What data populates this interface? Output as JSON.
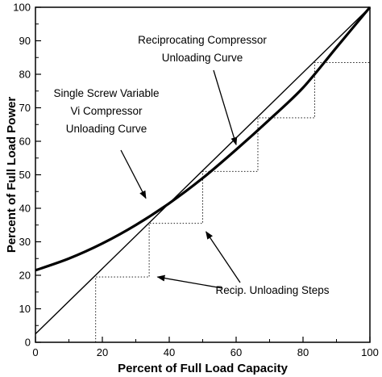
{
  "chart_data": {
    "type": "line",
    "xlabel": "Percent of Full Load Capacity",
    "ylabel": "Percent of Full Load Power",
    "xlim": [
      0,
      100
    ],
    "ylim": [
      0,
      100
    ],
    "xticks": [
      0,
      20,
      40,
      60,
      80,
      100
    ],
    "yticks": [
      0,
      10,
      20,
      30,
      40,
      50,
      60,
      70,
      80,
      90,
      100
    ],
    "grid": false,
    "legend": "none",
    "series": [
      {
        "key": "screw",
        "style": "thick",
        "x": [
          0,
          10,
          20,
          30,
          40,
          50,
          60,
          70,
          80,
          90,
          100
        ],
        "y": [
          21.5,
          25,
          29.5,
          35,
          41.5,
          49,
          57.5,
          66.5,
          76,
          88,
          100
        ]
      },
      {
        "key": "recip",
        "style": "thin",
        "x": [
          0,
          100
        ],
        "y": [
          2.5,
          100
        ]
      },
      {
        "key": "steps",
        "style": "dotted",
        "x": [
          18,
          18,
          34,
          34,
          50,
          50,
          66.5,
          66.5,
          83.5,
          83.5,
          100
        ],
        "y": [
          0,
          19.5,
          19.5,
          35.5,
          35.5,
          51,
          51,
          67,
          67,
          83.5,
          83.5
        ]
      }
    ],
    "annotations": [
      {
        "key": "recip_curve",
        "lines": [
          "Reciprocating Compressor",
          "Unloading Curve"
        ],
        "arrow_to": [
          60,
          59
        ]
      },
      {
        "key": "screw_curve",
        "lines": [
          "Single Screw Variable",
          "Vi Compressor",
          "Unloading Curve"
        ],
        "arrow_to": [
          33,
          43
        ]
      },
      {
        "key": "steps_label",
        "lines": [
          "Recip. Unloading Steps"
        ],
        "arrow_to": [
          [
            51,
            33
          ],
          [
            36.5,
            19.5
          ]
        ]
      }
    ]
  }
}
